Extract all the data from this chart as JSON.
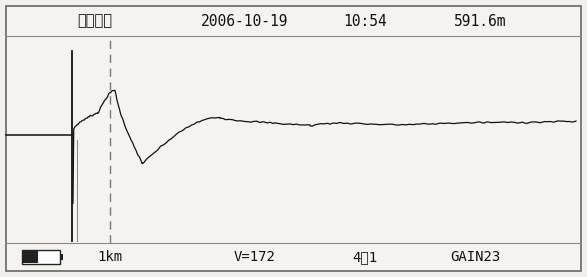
{
  "title_left": "脉冲电流",
  "title_date": "2006-10-19",
  "title_time": "10:54",
  "title_dist": "591.6m",
  "bottom_1km": "1km",
  "bottom_v": "V=172",
  "bottom_ratio": "4：1",
  "bottom_gain": "GAIN23",
  "bg_outer": "#f2f0ed",
  "bg_inner": "#f5f3f0",
  "border_color": "#666666",
  "line_color": "#111111",
  "dashed_color": "#777777",
  "header_divider": "#888888",
  "text_color": "#111111",
  "battery_dark": "#222222",
  "battery_light": "#dddddd",
  "fig_w": 5.87,
  "fig_h": 2.77,
  "dpi": 100
}
